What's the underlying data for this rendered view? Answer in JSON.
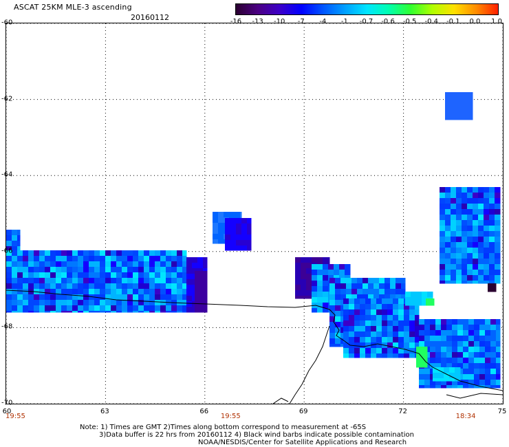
{
  "header": {
    "title": "ASCAT 25KM MLE-3 ascending",
    "date": "20160112"
  },
  "colorbar": {
    "labels": [
      "-16",
      "-13",
      "-10",
      "-7",
      "-4",
      "-1",
      "-0.7",
      "-0.6",
      "-0.5",
      "-0.4",
      "-0.1",
      "0.0",
      "1.0"
    ],
    "colors": [
      "#2a0030",
      "#4b0082",
      "#3c00c8",
      "#0000ff",
      "#0055ff",
      "#00a0ff",
      "#00e5ff",
      "#00ffb0",
      "#30ff30",
      "#b0ff00",
      "#ffe000",
      "#ff8c00",
      "#ff2000"
    ]
  },
  "map": {
    "lon_range": [
      60,
      75
    ],
    "lat_range": [
      -70,
      -60
    ],
    "lon_ticks": [
      "60",
      "63",
      "66",
      "69",
      "72",
      "75"
    ],
    "lat_ticks": [
      "-60",
      "-62",
      "-64",
      "-66",
      "-68",
      "-70"
    ],
    "grid": "dotted",
    "time_labels": [
      {
        "text": "19:55",
        "lon": 60.3
      },
      {
        "text": "19:55",
        "lon": 66.8
      },
      {
        "text": "18:34",
        "lon": 73.9
      }
    ],
    "coastline_color": "#000000",
    "data_color_main": "#0050ff"
  },
  "notes": {
    "line1": "Note: 1) Times are GMT 2)Times along bottom correspond to measurement at -65S",
    "line2": "3)Data buffer is 22 hrs from 20160112 4) Black wind barbs indicate possible contamination",
    "line3": "NOAA/NESDIS/Center for Satellite Applications and Research"
  }
}
